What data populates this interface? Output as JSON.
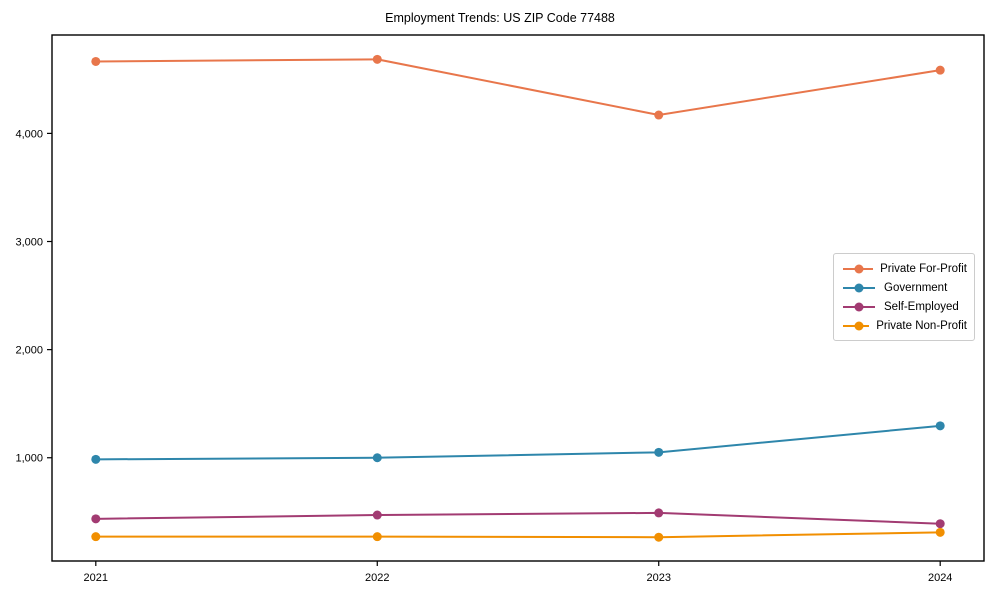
{
  "page": {
    "background": "#ffffff"
  },
  "chart_data": {
    "type": "line",
    "title": "Employment Trends: US ZIP Code 77488",
    "x": [
      "2021",
      "2022",
      "2023",
      "2024"
    ],
    "xlabel": "",
    "ylabel": "",
    "series": [
      {
        "name": "Private For-Profit",
        "color": "#E8764B",
        "values": [
          4665,
          4685,
          4170,
          4585
        ]
      },
      {
        "name": "Government",
        "color": "#2E86AB",
        "values": [
          985,
          1000,
          1050,
          1295
        ]
      },
      {
        "name": "Self-Employed",
        "color": "#A23B72",
        "values": [
          435,
          470,
          490,
          390
        ]
      },
      {
        "name": "Private Non-Profit",
        "color": "#F18F01",
        "values": [
          270,
          270,
          265,
          310
        ]
      }
    ],
    "yticks": [
      {
        "value": 1000,
        "label": "1,000"
      },
      {
        "value": 2000,
        "label": "2,000"
      },
      {
        "value": 3000,
        "label": "3,000"
      },
      {
        "value": 4000,
        "label": "4,000"
      }
    ],
    "ylim": [
      45,
      4910
    ],
    "grid": false,
    "legend_position": "center right",
    "marker": "circle",
    "frame_color": "#000000"
  }
}
